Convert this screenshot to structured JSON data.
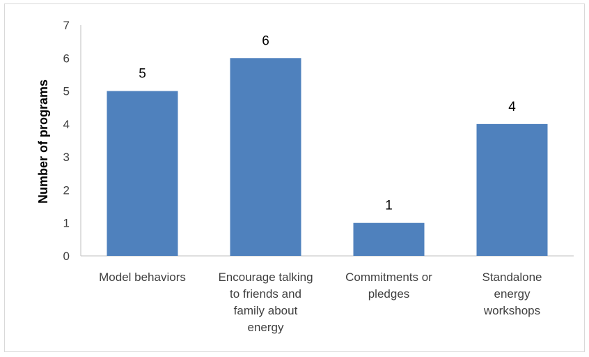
{
  "chart_data": {
    "type": "bar",
    "title": "",
    "xlabel": "",
    "ylabel": "Number of programs",
    "ylim": [
      0,
      7
    ],
    "yticks": [
      0,
      1,
      2,
      3,
      4,
      5,
      6,
      7
    ],
    "grid": false,
    "legend": "none",
    "categories": [
      [
        "Model behaviors"
      ],
      [
        "Encourage talking",
        "to friends and",
        "family about",
        "energy"
      ],
      [
        "Commitments or",
        "pledges"
      ],
      [
        "Standalone",
        "energy",
        "workshops"
      ]
    ],
    "values": [
      5,
      6,
      1,
      4
    ],
    "data_labels": [
      "5",
      "6",
      "1",
      "4"
    ],
    "bar_color": "#4f81bd"
  }
}
